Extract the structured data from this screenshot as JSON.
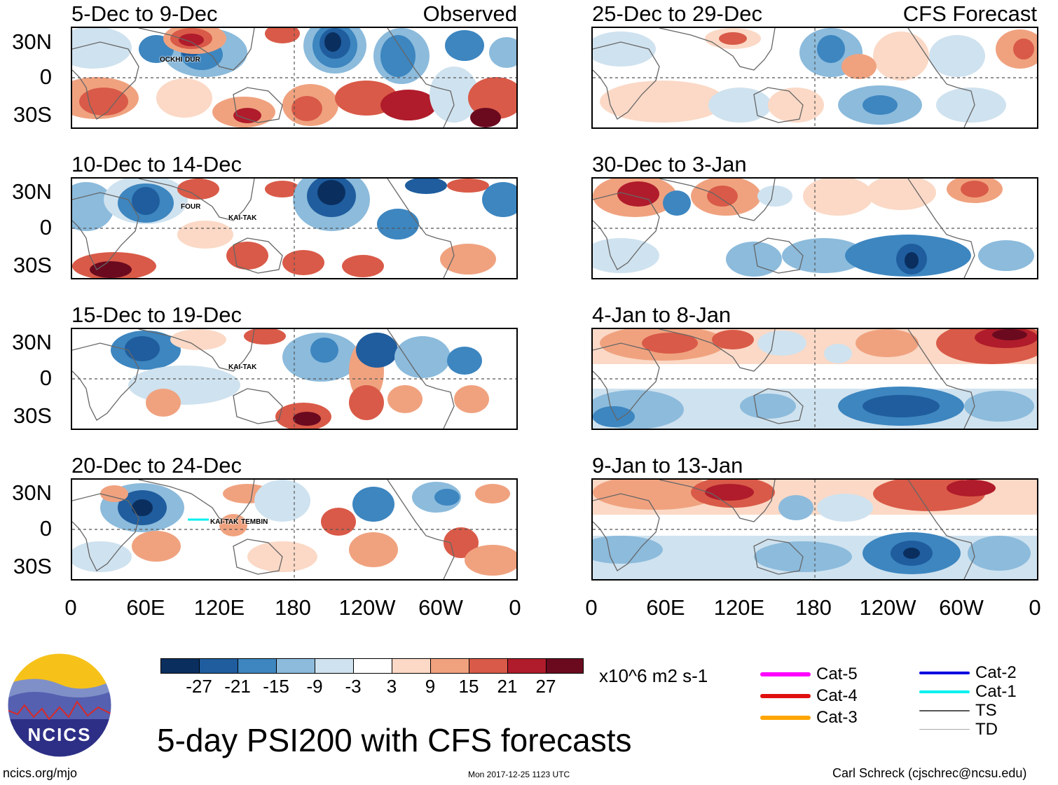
{
  "left_column": {
    "source": "Observed",
    "panels": [
      {
        "period": "5-Dec to 9-Dec",
        "storms": [
          "OCKHI",
          "DUR"
        ]
      },
      {
        "period": "10-Dec to 14-Dec",
        "storms": [
          "FOUR",
          "KAI-TAK"
        ]
      },
      {
        "period": "15-Dec to 19-Dec",
        "storms": [
          "KAI-TAK"
        ]
      },
      {
        "period": "20-Dec to 24-Dec",
        "storms": [
          "KAI-TAK",
          "TEMBIN"
        ]
      }
    ]
  },
  "right_column": {
    "source": "CFS Forecast",
    "panels": [
      {
        "period": "25-Dec to 29-Dec"
      },
      {
        "period": "30-Dec to 3-Jan"
      },
      {
        "period": "4-Jan to 8-Jan"
      },
      {
        "period": "9-Jan to 13-Jan"
      }
    ]
  },
  "lat_labels": [
    "30N",
    "0",
    "30S"
  ],
  "lon_labels": [
    "0",
    "60E",
    "120E",
    "180",
    "120W",
    "60W",
    "0"
  ],
  "colorbar": {
    "tick_labels": [
      "-27",
      "-21",
      "-15",
      "-9",
      "-3",
      "3",
      "9",
      "15",
      "21",
      "27"
    ],
    "colors": [
      "#0a2f5f",
      "#1f5d9e",
      "#3d86c0",
      "#8cbbdc",
      "#cfe2ef",
      "#ffffff",
      "#fbd9c6",
      "#f0a27f",
      "#d95a48",
      "#b01c2b",
      "#6b0a1f"
    ],
    "units": "x10^6 m2 s-1"
  },
  "track_legend": [
    {
      "label": "Cat-5",
      "color": "#ff00ff"
    },
    {
      "label": "Cat-4",
      "color": "#e01010"
    },
    {
      "label": "Cat-3",
      "color": "#ffa500"
    },
    {
      "label": "Cat-2",
      "color": "#0000e0"
    },
    {
      "label": "Cat-1",
      "color": "#00f0f0"
    },
    {
      "label": "TS",
      "color": "#555555"
    },
    {
      "label": "TD",
      "color": "#aaaaaa"
    }
  ],
  "logo_text": "NCICS",
  "main_title": "5-day PSI200 with CFS forecasts",
  "website": "ncics.org/mjo",
  "timestamp": "Mon 2017-12-25 1123 UTC",
  "author": "Carl Schreck (cjschrec@ncsu.edu)"
}
